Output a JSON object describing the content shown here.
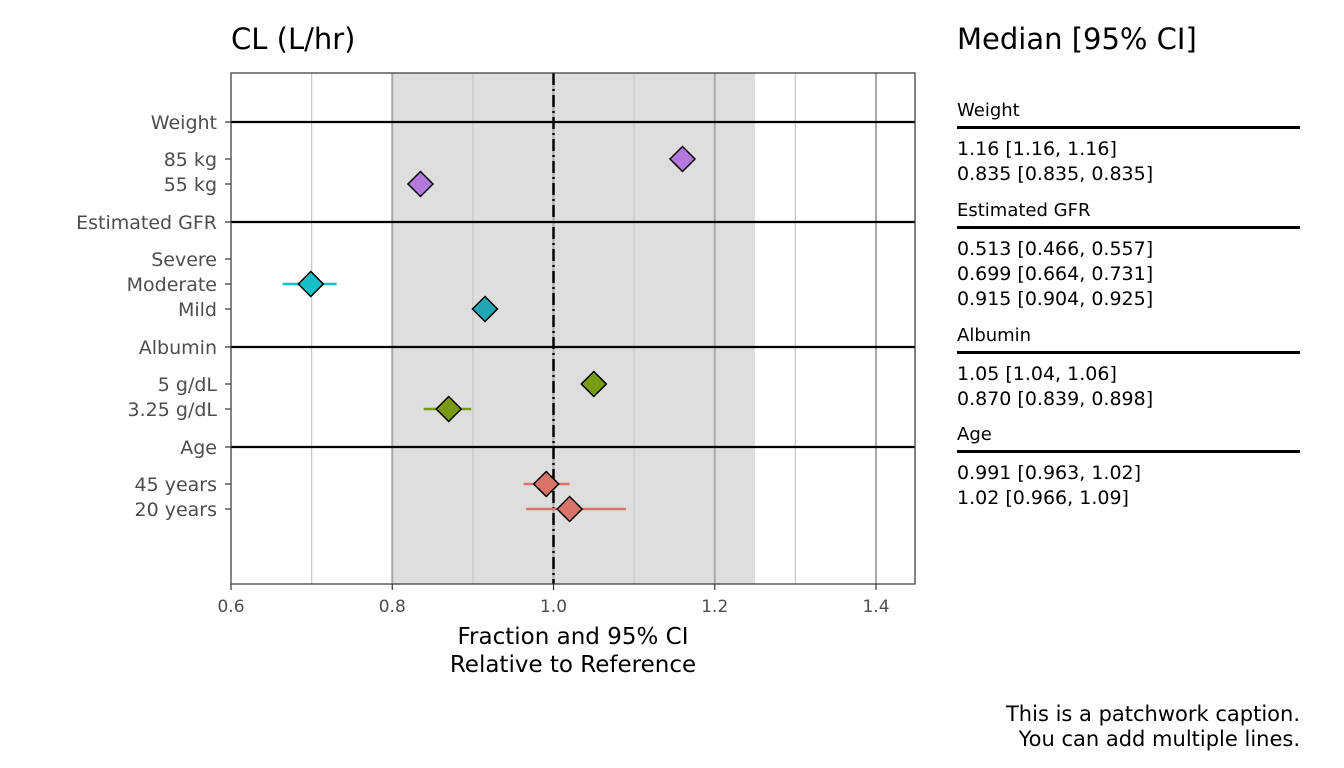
{
  "plot_title": "CL (L/hr)",
  "table_title": "Median [95% CI]",
  "caption": [
    "This is a patchwork caption.",
    "You can add multiple lines."
  ],
  "chart_data": {
    "type": "forest",
    "title": "CL (L/hr)",
    "xlabel": [
      "Fraction and 95% CI",
      "Relative to Reference"
    ],
    "xlim": [
      0.6,
      1.45
    ],
    "xticks": [
      0.6,
      0.8,
      1.0,
      1.2,
      1.4
    ],
    "xtick_labels": [
      "0.6",
      "0.8",
      "1.0",
      "1.2",
      "1.4"
    ],
    "reference_line": 1.0,
    "reference_band": [
      0.8,
      1.25
    ],
    "colors": {
      "Weight": "#b477db",
      "Estimated GFR": "#22a6b3",
      "Albumin": "#7a9a14",
      "Age": "#d9746a",
      "band": "#dedede",
      "Moderate": "#15c0c9"
    },
    "groups": [
      {
        "name": "Weight",
        "color": "#b477db",
        "rows": [
          {
            "label": "85 kg",
            "median": 1.16,
            "lo": 1.16,
            "hi": 1.16,
            "text": "1.16 [1.16, 1.16]"
          },
          {
            "label": "55 kg",
            "median": 0.835,
            "lo": 0.835,
            "hi": 0.835,
            "text": "0.835 [0.835, 0.835]"
          }
        ]
      },
      {
        "name": "Estimated GFR",
        "color": "#22a6b3",
        "rows": [
          {
            "label": "Severe",
            "median": 0.513,
            "lo": 0.466,
            "hi": 0.557,
            "text": "0.513 [0.466, 0.557]",
            "color": "#22a6b3"
          },
          {
            "label": "Moderate",
            "median": 0.699,
            "lo": 0.664,
            "hi": 0.731,
            "text": "0.699 [0.664, 0.731]",
            "color": "#15c0c9"
          },
          {
            "label": "Mild",
            "median": 0.915,
            "lo": 0.904,
            "hi": 0.925,
            "text": "0.915 [0.904, 0.925]",
            "color": "#22a6b3"
          }
        ]
      },
      {
        "name": "Albumin",
        "color": "#7a9a14",
        "rows": [
          {
            "label": "5 g/dL",
            "median": 1.05,
            "lo": 1.04,
            "hi": 1.06,
            "text": "1.05 [1.04, 1.06]"
          },
          {
            "label": "3.25 g/dL",
            "median": 0.87,
            "lo": 0.839,
            "hi": 0.898,
            "text": "0.870 [0.839, 0.898]"
          }
        ]
      },
      {
        "name": "Age",
        "color": "#d9746a",
        "rows": [
          {
            "label": "45 years",
            "median": 0.991,
            "lo": 0.963,
            "hi": 1.02,
            "text": "0.991 [0.963, 1.02]"
          },
          {
            "label": "20 years",
            "median": 1.02,
            "lo": 0.966,
            "hi": 1.09,
            "text": "1.02 [0.966, 1.09]"
          }
        ]
      }
    ]
  }
}
